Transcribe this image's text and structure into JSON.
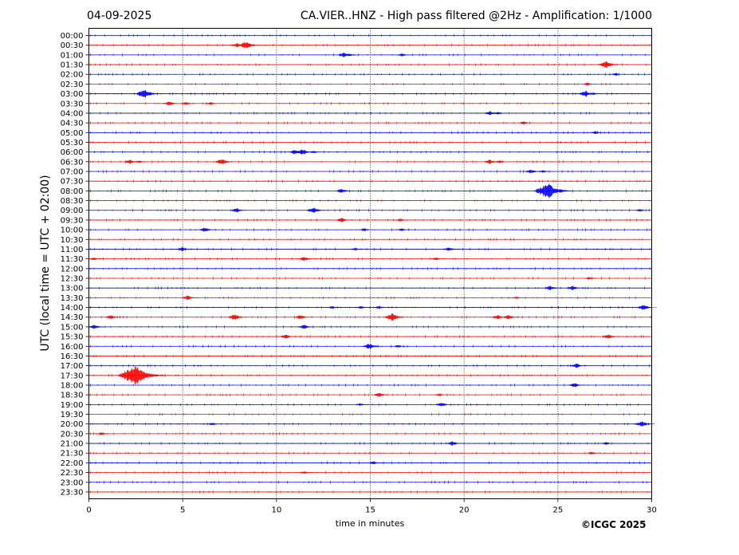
{
  "header": {
    "date": "04-09-2025",
    "title": "CA.VIER..HNZ - High pass filtered @2Hz - Amplification: 1/1000"
  },
  "footer": {
    "copyright": "©ICGC 2025"
  },
  "chart_data": {
    "type": "line",
    "title": "CA.VIER..HNZ - High pass filtered @2Hz - Amplification: 1/1000",
    "xlabel": "time in minutes",
    "ylabel": "UTC (local time = UTC + 02:00)",
    "xlim": [
      0,
      30
    ],
    "xticks": [
      0,
      5,
      10,
      15,
      20,
      25,
      30
    ],
    "grid": "vertical dotted lines at 5-minute intervals",
    "trace_colors": [
      "#0000ff",
      "#ff0000"
    ],
    "rows": [
      {
        "label": "00:00",
        "events": []
      },
      {
        "label": "00:30",
        "events": [
          {
            "t": 7.9,
            "amp": 3
          },
          {
            "t": 8.4,
            "amp": 5
          }
        ]
      },
      {
        "label": "01:00",
        "events": [
          {
            "t": 13.6,
            "amp": 3
          },
          {
            "t": 13.9,
            "amp": 2
          },
          {
            "t": 16.7,
            "amp": 2
          }
        ]
      },
      {
        "label": "01:30",
        "events": [
          {
            "t": 27.6,
            "amp": 5
          }
        ]
      },
      {
        "label": "02:00",
        "events": [
          {
            "t": 28.1,
            "amp": 2
          }
        ]
      },
      {
        "label": "02:30",
        "events": [
          {
            "t": 26.6,
            "amp": 2
          }
        ]
      },
      {
        "label": "03:00",
        "events": [
          {
            "t": 3.0,
            "amp": 6
          },
          {
            "t": 26.5,
            "amp": 4
          },
          {
            "t": 26.9,
            "amp": 2
          }
        ]
      },
      {
        "label": "03:30",
        "events": [
          {
            "t": 4.3,
            "amp": 3
          },
          {
            "t": 5.2,
            "amp": 2
          },
          {
            "t": 6.5,
            "amp": 2
          }
        ]
      },
      {
        "label": "04:00",
        "events": [
          {
            "t": 21.4,
            "amp": 3
          },
          {
            "t": 21.8,
            "amp": 2
          }
        ]
      },
      {
        "label": "04:30",
        "events": [
          {
            "t": 23.2,
            "amp": 2
          }
        ]
      },
      {
        "label": "05:00",
        "events": [
          {
            "t": 27.0,
            "amp": 2
          }
        ]
      },
      {
        "label": "05:30",
        "events": []
      },
      {
        "label": "06:00",
        "events": [
          {
            "t": 11.0,
            "amp": 3
          },
          {
            "t": 11.4,
            "amp": 4
          },
          {
            "t": 12.0,
            "amp": 2
          }
        ]
      },
      {
        "label": "06:30",
        "events": [
          {
            "t": 2.2,
            "amp": 3
          },
          {
            "t": 2.7,
            "amp": 2
          },
          {
            "t": 7.1,
            "amp": 4
          },
          {
            "t": 21.4,
            "amp": 3
          },
          {
            "t": 21.9,
            "amp": 2
          }
        ]
      },
      {
        "label": "07:00",
        "events": [
          {
            "t": 23.6,
            "amp": 3
          },
          {
            "t": 24.2,
            "amp": 2
          }
        ]
      },
      {
        "label": "07:30",
        "events": []
      },
      {
        "label": "08:00",
        "events": [
          {
            "t": 13.5,
            "amp": 3
          },
          {
            "t": 24.5,
            "amp": 10
          }
        ]
      },
      {
        "label": "08:30",
        "events": []
      },
      {
        "label": "09:00",
        "events": [
          {
            "t": 7.9,
            "amp": 3
          },
          {
            "t": 12.0,
            "amp": 4
          },
          {
            "t": 29.4,
            "amp": 2
          }
        ]
      },
      {
        "label": "09:30",
        "events": [
          {
            "t": 13.5,
            "amp": 3
          },
          {
            "t": 16.6,
            "amp": 2
          }
        ]
      },
      {
        "label": "10:00",
        "events": [
          {
            "t": 6.2,
            "amp": 3
          },
          {
            "t": 14.7,
            "amp": 2
          },
          {
            "t": 16.7,
            "amp": 2
          }
        ]
      },
      {
        "label": "10:30",
        "events": []
      },
      {
        "label": "11:00",
        "events": [
          {
            "t": 5.0,
            "amp": 3
          },
          {
            "t": 14.2,
            "amp": 2
          },
          {
            "t": 19.2,
            "amp": 3
          }
        ]
      },
      {
        "label": "11:30",
        "events": [
          {
            "t": 0.3,
            "amp": 2
          },
          {
            "t": 11.5,
            "amp": 3
          },
          {
            "t": 18.5,
            "amp": 2
          }
        ]
      },
      {
        "label": "12:00",
        "events": []
      },
      {
        "label": "12:30",
        "events": [
          {
            "t": 26.7,
            "amp": 2
          }
        ]
      },
      {
        "label": "13:00",
        "events": [
          {
            "t": 24.6,
            "amp": 3
          },
          {
            "t": 25.8,
            "amp": 3
          }
        ]
      },
      {
        "label": "13:30",
        "events": [
          {
            "t": 5.3,
            "amp": 3
          },
          {
            "t": 22.8,
            "amp": 2
          }
        ]
      },
      {
        "label": "14:00",
        "events": [
          {
            "t": 13.0,
            "amp": 2
          },
          {
            "t": 14.5,
            "amp": 2
          },
          {
            "t": 15.5,
            "amp": 2
          },
          {
            "t": 29.6,
            "amp": 4
          }
        ]
      },
      {
        "label": "14:30",
        "events": [
          {
            "t": 1.2,
            "amp": 3
          },
          {
            "t": 7.8,
            "amp": 4
          },
          {
            "t": 11.3,
            "amp": 3
          },
          {
            "t": 16.2,
            "amp": 5
          },
          {
            "t": 21.8,
            "amp": 3
          },
          {
            "t": 22.4,
            "amp": 3
          }
        ]
      },
      {
        "label": "15:00",
        "events": [
          {
            "t": 0.3,
            "amp": 3
          },
          {
            "t": 11.5,
            "amp": 3
          }
        ]
      },
      {
        "label": "15:30",
        "events": [
          {
            "t": 10.5,
            "amp": 3
          },
          {
            "t": 27.7,
            "amp": 3
          }
        ]
      },
      {
        "label": "16:00",
        "events": [
          {
            "t": 15.0,
            "amp": 4
          },
          {
            "t": 16.5,
            "amp": 2
          }
        ]
      },
      {
        "label": "16:30",
        "events": []
      },
      {
        "label": "17:00",
        "events": [
          {
            "t": 26.0,
            "amp": 3
          }
        ]
      },
      {
        "label": "17:30",
        "events": [
          {
            "t": 2.5,
            "amp": 13
          }
        ]
      },
      {
        "label": "18:00",
        "events": [
          {
            "t": 25.9,
            "amp": 3
          }
        ]
      },
      {
        "label": "18:30",
        "events": [
          {
            "t": 15.5,
            "amp": 3
          },
          {
            "t": 18.7,
            "amp": 2
          }
        ]
      },
      {
        "label": "19:00",
        "events": [
          {
            "t": 14.5,
            "amp": 2
          },
          {
            "t": 18.8,
            "amp": 3
          }
        ]
      },
      {
        "label": "19:30",
        "events": []
      },
      {
        "label": "20:00",
        "events": [
          {
            "t": 6.6,
            "amp": 2
          },
          {
            "t": 29.5,
            "amp": 4
          }
        ]
      },
      {
        "label": "20:30",
        "events": [
          {
            "t": 0.7,
            "amp": 2
          }
        ]
      },
      {
        "label": "21:00",
        "events": [
          {
            "t": 19.4,
            "amp": 3
          },
          {
            "t": 27.6,
            "amp": 2
          }
        ]
      },
      {
        "label": "21:30",
        "events": [
          {
            "t": 26.8,
            "amp": 2
          }
        ]
      },
      {
        "label": "22:00",
        "events": [
          {
            "t": 15.2,
            "amp": 2
          }
        ]
      },
      {
        "label": "22:30",
        "events": [
          {
            "t": 11.5,
            "amp": 2
          }
        ]
      },
      {
        "label": "23:00",
        "events": []
      },
      {
        "label": "23:30",
        "events": []
      }
    ]
  }
}
